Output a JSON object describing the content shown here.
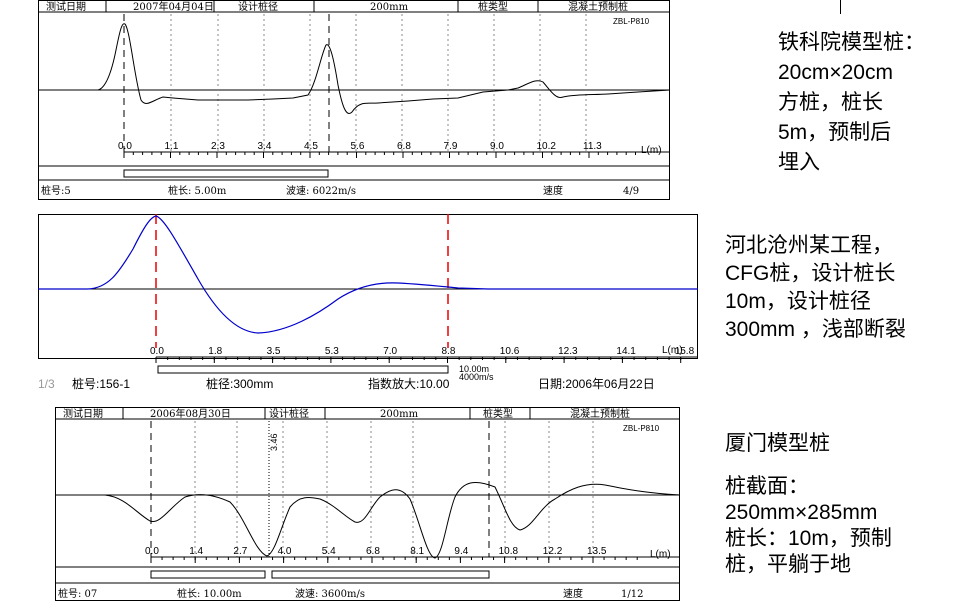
{
  "panel1": {
    "header": {
      "test_date_label": "测试日期",
      "test_date": "2007年04月04日",
      "design_dia_label": "设计桩径",
      "design_dia": "200mm",
      "pile_type_label": "桩类型",
      "pile_type": "混凝土预制桩"
    },
    "model": "ZBL-P810",
    "ticks": [
      "0.0",
      "1.1",
      "2.3",
      "3.4",
      "4.5",
      "5.6",
      "6.8",
      "7.9",
      "9.0",
      "10.2",
      "11.3"
    ],
    "axis_unit": "L(m)",
    "footer": {
      "pile_no": "桩号:5",
      "pile_len": "桩长: 5.00m",
      "wave_speed": "波速: 6022m/s",
      "speed_label": "速度",
      "page": "4/9"
    }
  },
  "panel2": {
    "ticks": [
      "0.0",
      "1.8",
      "3.5",
      "5.3",
      "7.0",
      "8.8",
      "10.6",
      "12.3",
      "14.1",
      "15.8"
    ],
    "axis_unit": "L(m)",
    "scale_len": "10.00m",
    "scale_speed": "4000m/s",
    "footer": {
      "page": "1/3",
      "pile_no": "桩号:156-1",
      "pile_dia": "桩径:300mm",
      "amp": "指数放大:10.00",
      "date": "日期:2006年06月22日"
    }
  },
  "panel3": {
    "header": {
      "test_date_label": "测试日期",
      "test_date": "2006年08月30日",
      "design_dia_label": "设计桩径",
      "design_dia": "200mm",
      "pile_type_label": "桩类型",
      "pile_type": "混凝土预制桩"
    },
    "model": "ZBL-P810",
    "marker": "3.46",
    "ticks": [
      "0.0",
      "1.4",
      "2.7",
      "4.0",
      "5.4",
      "6.8",
      "8.1",
      "9.4",
      "10.8",
      "12.2",
      "13.5"
    ],
    "axis_unit": "L(m)",
    "footer": {
      "pile_no": "桩号: 07",
      "pile_len": "桩长: 10.00m",
      "wave_speed": "波速: 3600m/s",
      "speed_label": "速度",
      "page": "1/12"
    }
  },
  "notes": {
    "note1": [
      "铁科院模型桩：",
      "20cm×20cm",
      "方桩，桩长",
      "5m，预制后",
      "埋入"
    ],
    "note2": [
      "河北沧州某工程，",
      "CFG桩，设计桩长",
      "10m，设计桩径",
      "300mm ，浅部断裂"
    ],
    "note3_title": "厦门模型桩",
    "note3": [
      "桩截面：",
      "250mm×285mm",
      "桩长：10m，预制",
      "桩，平躺于地"
    ]
  }
}
